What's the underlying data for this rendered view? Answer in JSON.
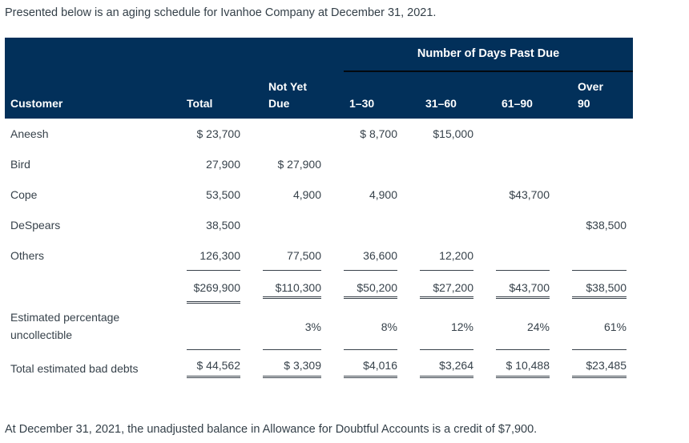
{
  "page": {
    "intro": "Presented below is an aging schedule for Ivanhoe Company at December 31, 2021.",
    "footnote": "At December 31, 2021, the unadjusted balance in Allowance for Doubtful Accounts is a credit of $7,900."
  },
  "colors": {
    "header_bg": "#02305A",
    "header_text": "#FFFFFF",
    "body_text": "#37424B",
    "rule": "#39424B",
    "group_rule": "#03090F"
  },
  "table": {
    "group_header": "Number of Days Past Due",
    "columns": [
      "Customer",
      "Total",
      "Not Yet\nDue",
      "1–30",
      "31–60",
      "61–90",
      "Over\n90"
    ],
    "rows": [
      [
        "Aneesh",
        "$ 23,700",
        "",
        "$ 8,700",
        "$15,000",
        "",
        ""
      ],
      [
        "Bird",
        "27,900",
        "$ 27,900",
        "",
        "",
        "",
        ""
      ],
      [
        "Cope",
        "53,500",
        "4,900",
        "4,900",
        "",
        "$43,700",
        ""
      ],
      [
        "DeSpears",
        "38,500",
        "",
        "",
        "",
        "",
        "$38,500"
      ],
      [
        "Others",
        "126,300",
        "77,500",
        "36,600",
        "12,200",
        "",
        ""
      ]
    ],
    "totals": [
      "$269,900",
      "$110,300",
      "$50,200",
      "$27,200",
      "$43,700",
      "$38,500"
    ],
    "pct_label": "Estimated percentage uncollectible",
    "pct": [
      "",
      "3%",
      "8%",
      "12%",
      "24%",
      "61%"
    ],
    "bad_debts_label": "Total estimated bad debts",
    "bad_debts": [
      "$ 44,562",
      "$ 3,309",
      "$4,016",
      "$3,264",
      "$ 10,488",
      "$23,485"
    ]
  }
}
